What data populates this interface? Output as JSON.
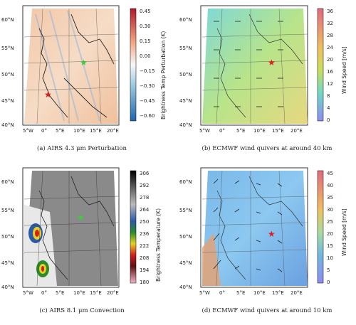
{
  "panels": [
    {
      "id": "a",
      "caption": "(a) AIRS 4.3 μm Perturbation",
      "colorbar_label": "Brightness Temp Perturbation (K)",
      "colorbar_ticks": [
        "0.45",
        "0.30",
        "0.15",
        "0.00",
        "−0.15",
        "−0.30",
        "−0.45",
        "−0.60"
      ],
      "colors": {
        "top": "#b2182b",
        "mid": "#f7f7f7",
        "bottom": "#2166ac"
      }
    },
    {
      "id": "b",
      "caption": "(b) ECMWF wind quivers at around 40 km",
      "colorbar_label": "Wind Speed [m/s]",
      "colorbar_ticks": [
        "36",
        "32",
        "28",
        "24",
        "20",
        "16",
        "12",
        "8",
        "4",
        "0"
      ],
      "colors": {
        "top": "#e06a80",
        "mid": "#c8e05a",
        "bottom": "#8c8cf0"
      }
    },
    {
      "id": "c",
      "caption": "(c) AIRS 8.1 μm Convection",
      "colorbar_label": "Brightness Temperature (K)",
      "colorbar_ticks": [
        "306",
        "292",
        "278",
        "264",
        "250",
        "236",
        "222",
        "208",
        "194",
        "180"
      ],
      "colors": {
        "top": "#000000",
        "mid": "#2a8c2a",
        "bottom": "#f4b6c8"
      }
    },
    {
      "id": "d",
      "caption": "(d) ECMWF wind quivers at around 10 km",
      "colorbar_label": "Wind Speed [m/s]",
      "colorbar_ticks": [
        "45",
        "40",
        "35",
        "30",
        "25",
        "20",
        "15",
        "10",
        "5",
        "0"
      ],
      "colors": {
        "top": "#e06a80",
        "mid": "#a8dca0",
        "bottom": "#8c8cf0"
      }
    }
  ],
  "map": {
    "lat_labels": [
      "60°N",
      "55°N",
      "50°N",
      "45°N",
      "40°N"
    ],
    "lon_labels": [
      "5°W",
      "0°",
      "5°E",
      "10°E",
      "15°E",
      "20°E"
    ]
  }
}
